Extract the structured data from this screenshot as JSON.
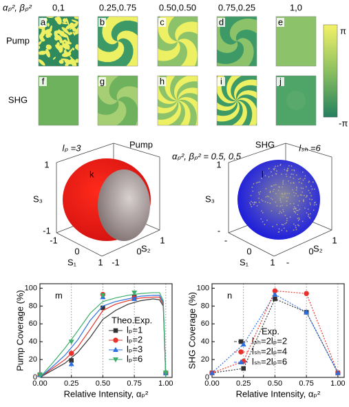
{
  "phase_maps": {
    "param_label": "αₚ², βₚ²",
    "columns": [
      "0,1",
      "0.25,0.75",
      "0.50,0.50",
      "0.75,0.25",
      "1,0"
    ],
    "rows": [
      {
        "label": "Pump",
        "panels": [
          "a",
          "b",
          "c",
          "d",
          "e"
        ]
      },
      {
        "label": "SHG",
        "panels": [
          "f",
          "g",
          "h",
          "i",
          "j"
        ]
      }
    ],
    "colorbar": {
      "max_label": "π",
      "min_label": "-π"
    }
  },
  "spheres": {
    "param_label": "αₚ², βₚ² = 0.5, 0.5",
    "panels": [
      {
        "letter": "k",
        "title": "Pump",
        "mode_label": "lₚ =3",
        "s3": "S₃",
        "s1": "S₁",
        "s2": "S₂",
        "s3_ticks": [
          "1",
          "-1"
        ],
        "s1_ticks": [
          "-1",
          "0",
          "1"
        ],
        "s2_ticks": [
          "-1",
          "0",
          "1"
        ]
      },
      {
        "letter": "l",
        "title": "SHG",
        "mode_label": "lₛₕ =6",
        "s3": "S₃",
        "s1": "S₁",
        "s2": "S₂",
        "s3_ticks": [
          "1",
          "-"
        ],
        "s1_ticks": [
          "-",
          "0",
          "1"
        ],
        "s2_ticks": [
          "-",
          "0",
          "1"
        ]
      }
    ]
  },
  "chart_data": [
    {
      "type": "line",
      "panel": "m",
      "ylabel": "Pump Coverage (%)",
      "xlabel": "Relative Intensity, αₚ²",
      "legend_title": "Theo.Exp.",
      "xgrid": true,
      "line_style": "solid",
      "xlim": [
        0,
        1.05
      ],
      "ylim": [
        0,
        105
      ],
      "xticks": [
        {
          "value": 0,
          "label": "0.00"
        },
        {
          "value": 0.25,
          "label": "0.25"
        },
        {
          "value": 0.5,
          "label": "0.50"
        },
        {
          "value": 0.75,
          "label": "0.75"
        },
        {
          "value": 1,
          "label": "1.00"
        }
      ],
      "yticks": [
        0,
        20,
        40,
        60,
        80,
        100
      ],
      "x": [
        0,
        0.1,
        0.2,
        0.3,
        0.4,
        0.5,
        0.6,
        0.7,
        0.8,
        0.9,
        0.95,
        0.98,
        1.0
      ],
      "exp_x": [
        0,
        0.25,
        0.5,
        0.75,
        1.0
      ],
      "series": [
        {
          "name": "lₚ=1",
          "color": "#333333",
          "marker": "square",
          "values": [
            0,
            8,
            16,
            28,
            45,
            65,
            75,
            82,
            86,
            88,
            87,
            80,
            0
          ],
          "exp_values": [
            3,
            19,
            78,
            90,
            5
          ]
        },
        {
          "name": "lₚ=2",
          "color": "#e8312a",
          "marker": "circle",
          "values": [
            0,
            10,
            20,
            34,
            54,
            75,
            82,
            86,
            89,
            90,
            90,
            82,
            0
          ],
          "exp_values": [
            3,
            27,
            93,
            89,
            5
          ]
        },
        {
          "name": "lₚ=3",
          "color": "#2a6ee0",
          "marker": "triangle",
          "values": [
            0,
            12,
            25,
            42,
            64,
            80,
            85,
            88,
            91,
            92,
            92,
            84,
            0
          ],
          "exp_values": [
            3,
            15,
            90,
            88,
            5
          ]
        },
        {
          "name": "lₚ=6",
          "color": "#3aae6a",
          "marker": "down-triangle",
          "values": [
            0,
            16,
            33,
            52,
            72,
            85,
            89,
            92,
            94,
            95,
            95,
            86,
            0
          ],
          "exp_values": [
            3,
            40,
            92,
            95,
            5
          ]
        }
      ]
    },
    {
      "type": "line",
      "panel": "n",
      "ylabel": "SHG Coverage (%)",
      "xlabel": "Relative Intensity, αₚ²",
      "legend_title": "Exp.",
      "xgrid": true,
      "line_style": "dotted",
      "xlim": [
        0,
        1.05
      ],
      "ylim": [
        0,
        105
      ],
      "xticks": [
        {
          "value": 0,
          "label": "0.00"
        },
        {
          "value": 0.25,
          "label": "0.25"
        },
        {
          "value": 0.5,
          "label": "0.50"
        },
        {
          "value": 0.75,
          "label": "0.75"
        },
        {
          "value": 1,
          "label": "1.00"
        }
      ],
      "yticks": [
        0,
        20,
        40,
        60,
        80,
        100
      ],
      "x": [
        0,
        0.25,
        0.5,
        0.75,
        1.0
      ],
      "series": [
        {
          "name": "lₛₕ=2lₚ=2",
          "color": "#333333",
          "marker": "square",
          "values": [
            5,
            10,
            88,
            73,
            5
          ]
        },
        {
          "name": "lₛₕ=2lₚ=4",
          "color": "#e8312a",
          "marker": "circle",
          "values": [
            5,
            18,
            97,
            94,
            5
          ]
        },
        {
          "name": "lₛₕ=2lₚ=6",
          "color": "#2a6ee0",
          "marker": "triangle",
          "values": [
            5,
            37,
            93,
            73,
            5
          ]
        }
      ]
    }
  ]
}
